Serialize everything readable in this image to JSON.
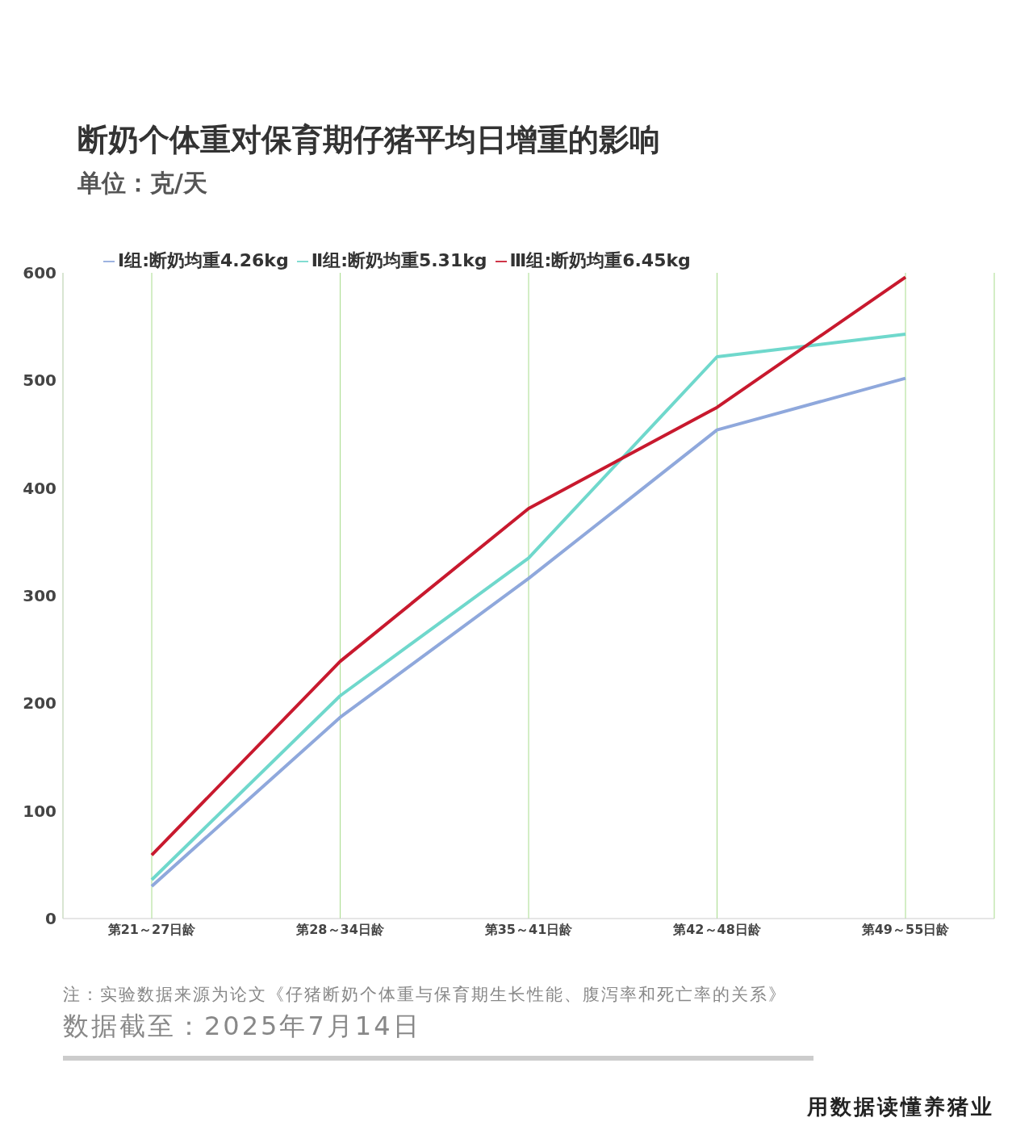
{
  "chart_data": {
    "type": "line",
    "title": "断奶个体重对保育期仔猪平均日增重的影响",
    "subtitle": "单位：克/天",
    "categories": [
      "第21～27日龄",
      "第28～34日龄",
      "第35～41日龄",
      "第42～48日龄",
      "第49～55日龄"
    ],
    "series": [
      {
        "name": "Ⅰ组:断奶均重4.26kg",
        "color": "#8fa8dc",
        "values": [
          30,
          187,
          316,
          454,
          502
        ]
      },
      {
        "name": "Ⅱ组:断奶均重5.31kg",
        "color": "#6fd8cc",
        "values": [
          36,
          207,
          335,
          522,
          543
        ]
      },
      {
        "name": "Ⅲ组:断奶均重6.45kg",
        "color": "#c8192e",
        "values": [
          59,
          239,
          381,
          475,
          596
        ]
      }
    ],
    "ylim": [
      0,
      600
    ],
    "yticks": [
      0,
      100,
      200,
      300,
      400,
      500,
      600
    ],
    "grid": "x",
    "legend": "top left",
    "marker": "none",
    "line_style": "solid",
    "annotations": [
      "注：实验数据来源为论文《仔猪断奶个体重与保育期生长性能、腹泻率和死亡率的关系》",
      "数据截至：2025年7月14日",
      "用数据读懂养猪业"
    ]
  }
}
